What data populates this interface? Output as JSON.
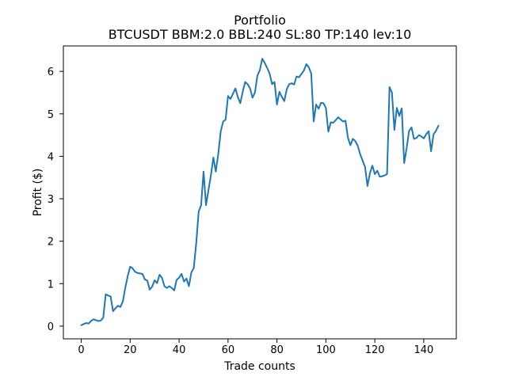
{
  "chart_data": {
    "type": "line",
    "title": "Portfolio",
    "subtitle": "BTCUSDT BBM:2.0 BBL:240 SL:80 TP:140 lev:10",
    "xlabel": "Trade counts",
    "ylabel": "Profit ($)",
    "xlim": [
      -7.3,
      153.3
    ],
    "ylim": [
      -0.3,
      6.6
    ],
    "xticks": [
      0,
      20,
      40,
      60,
      80,
      100,
      120,
      140
    ],
    "yticks": [
      0,
      1,
      2,
      3,
      4,
      5,
      6
    ],
    "xtick_labels": [
      "0",
      "20",
      "40",
      "60",
      "80",
      "100",
      "120",
      "140"
    ],
    "ytick_labels": [
      "0",
      "1",
      "2",
      "3",
      "4",
      "5",
      "6"
    ],
    "grid": false,
    "line_color": "#1f77b4",
    "series": [
      {
        "name": "",
        "x": [
          0,
          1,
          2,
          3,
          4,
          5,
          6,
          7,
          8,
          9,
          10,
          11,
          12,
          13,
          14,
          15,
          16,
          17,
          18,
          19,
          20,
          21,
          22,
          23,
          24,
          25,
          26,
          27,
          28,
          29,
          30,
          31,
          32,
          33,
          34,
          35,
          36,
          37,
          38,
          39,
          40,
          41,
          42,
          43,
          44,
          45,
          46,
          47,
          48,
          49,
          50,
          51,
          52,
          53,
          54,
          55,
          56,
          57,
          58,
          59,
          60,
          61,
          62,
          63,
          64,
          65,
          66,
          67,
          68,
          69,
          70,
          71,
          72,
          73,
          74,
          75,
          76,
          77,
          78,
          79,
          80,
          81,
          82,
          83,
          84,
          85,
          86,
          87,
          88,
          89,
          90,
          91,
          92,
          93,
          94,
          95,
          96,
          97,
          98,
          99,
          100,
          101,
          102,
          103,
          104,
          105,
          106,
          107,
          108,
          109,
          110,
          111,
          112,
          113,
          114,
          115,
          116,
          117,
          118,
          119,
          120,
          121,
          122,
          123,
          124,
          125,
          126,
          127,
          128,
          129,
          130,
          131,
          132,
          133,
          134,
          135,
          136,
          137,
          138,
          139,
          140,
          141,
          142,
          143,
          144,
          145,
          146
        ],
        "y": [
          0.02,
          0.05,
          0.07,
          0.06,
          0.12,
          0.16,
          0.14,
          0.12,
          0.13,
          0.2,
          0.75,
          0.72,
          0.7,
          0.35,
          0.42,
          0.48,
          0.45,
          0.58,
          0.9,
          1.18,
          1.4,
          1.36,
          1.28,
          1.25,
          1.24,
          1.23,
          1.1,
          1.07,
          0.86,
          0.93,
          1.08,
          1.01,
          1.21,
          1.14,
          0.94,
          0.9,
          0.94,
          0.9,
          0.84,
          1.09,
          1.14,
          1.23,
          1.05,
          1.12,
          0.94,
          1.26,
          1.37,
          1.95,
          2.7,
          2.85,
          3.64,
          2.85,
          3.2,
          3.55,
          3.97,
          3.64,
          4.05,
          4.58,
          4.82,
          4.86,
          5.42,
          5.35,
          5.47,
          5.6,
          5.4,
          5.25,
          5.52,
          5.75,
          5.7,
          5.6,
          5.38,
          5.5,
          5.9,
          6.03,
          6.3,
          6.2,
          6.08,
          5.95,
          5.7,
          5.75,
          5.22,
          5.52,
          5.4,
          5.3,
          5.58,
          5.7,
          5.72,
          5.69,
          5.88,
          5.86,
          5.94,
          6.02,
          6.17,
          6.1,
          5.95,
          4.82,
          5.22,
          5.12,
          5.26,
          5.25,
          5.14,
          4.58,
          4.8,
          4.79,
          4.85,
          4.92,
          4.87,
          4.82,
          4.84,
          4.44,
          4.26,
          4.41,
          4.36,
          4.25,
          4.05,
          3.9,
          3.75,
          3.3,
          3.6,
          3.78,
          3.58,
          3.66,
          3.52,
          3.53,
          3.55,
          3.58,
          5.63,
          5.5,
          4.62,
          5.14,
          4.95,
          5.13,
          3.84,
          4.19,
          4.6,
          4.68,
          4.41,
          4.43,
          4.5,
          4.47,
          4.42,
          4.52,
          4.59,
          4.12,
          4.52,
          4.6,
          4.72
        ]
      }
    ]
  }
}
